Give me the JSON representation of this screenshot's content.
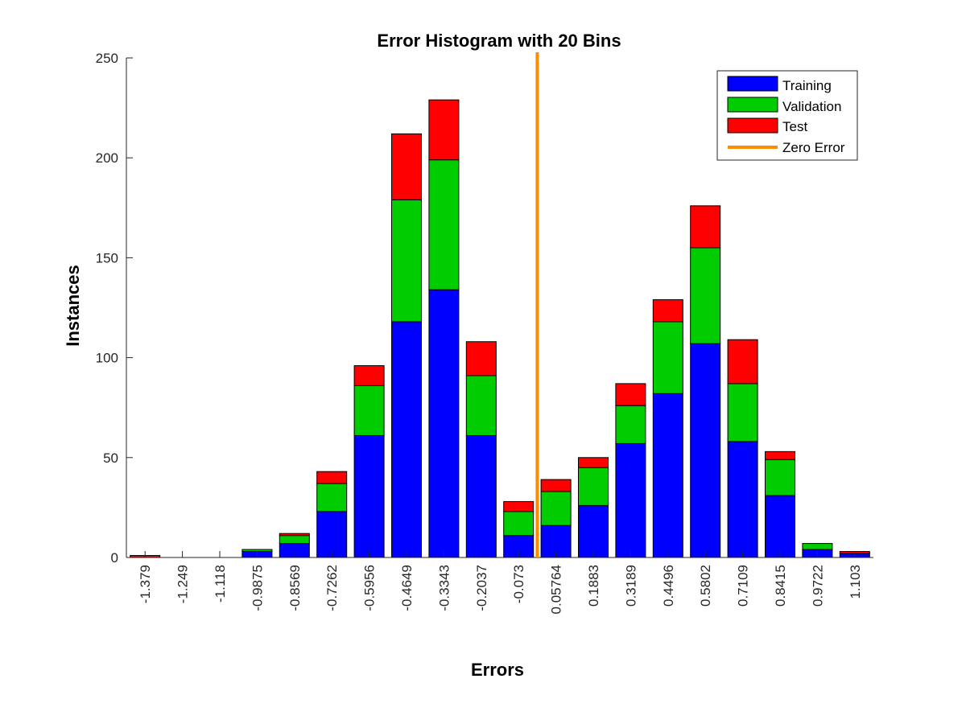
{
  "chart_data": {
    "type": "bar",
    "stacked": true,
    "title": "Error Histogram with 20 Bins",
    "xlabel": "Errors",
    "ylabel": "Instances",
    "ylim": [
      0,
      250
    ],
    "yticks": [
      0,
      50,
      100,
      150,
      200,
      250
    ],
    "categories": [
      "-1.379",
      "-1.249",
      "-1.118",
      "-0.9875",
      "-0.8569",
      "-0.7262",
      "-0.5956",
      "-0.4649",
      "-0.3343",
      "-0.2037",
      "-0.073",
      "0.05764",
      "0.1883",
      "0.3189",
      "0.4496",
      "0.5802",
      "0.7109",
      "0.8415",
      "0.9722",
      "1.103"
    ],
    "series": [
      {
        "name": "Training",
        "color": "#0000ff",
        "values": [
          0,
          0,
          0,
          3,
          7,
          23,
          61,
          118,
          134,
          61,
          11,
          16,
          26,
          57,
          82,
          107,
          58,
          31,
          4,
          2
        ]
      },
      {
        "name": "Validation",
        "color": "#00cc00",
        "values": [
          0,
          0,
          0,
          1,
          4,
          14,
          25,
          61,
          65,
          30,
          12,
          17,
          19,
          19,
          36,
          48,
          29,
          18,
          3,
          0
        ]
      },
      {
        "name": "Test",
        "color": "#ff0000",
        "values": [
          1,
          0,
          0,
          0,
          1,
          6,
          10,
          33,
          30,
          17,
          5,
          6,
          5,
          11,
          11,
          21,
          22,
          4,
          0,
          1
        ]
      }
    ],
    "zero_error": {
      "name": "Zero Error",
      "color": "#ff8c00",
      "position_between": [
        "-0.073",
        "0.05764"
      ]
    },
    "legend_position": "top-right",
    "grid": false
  }
}
